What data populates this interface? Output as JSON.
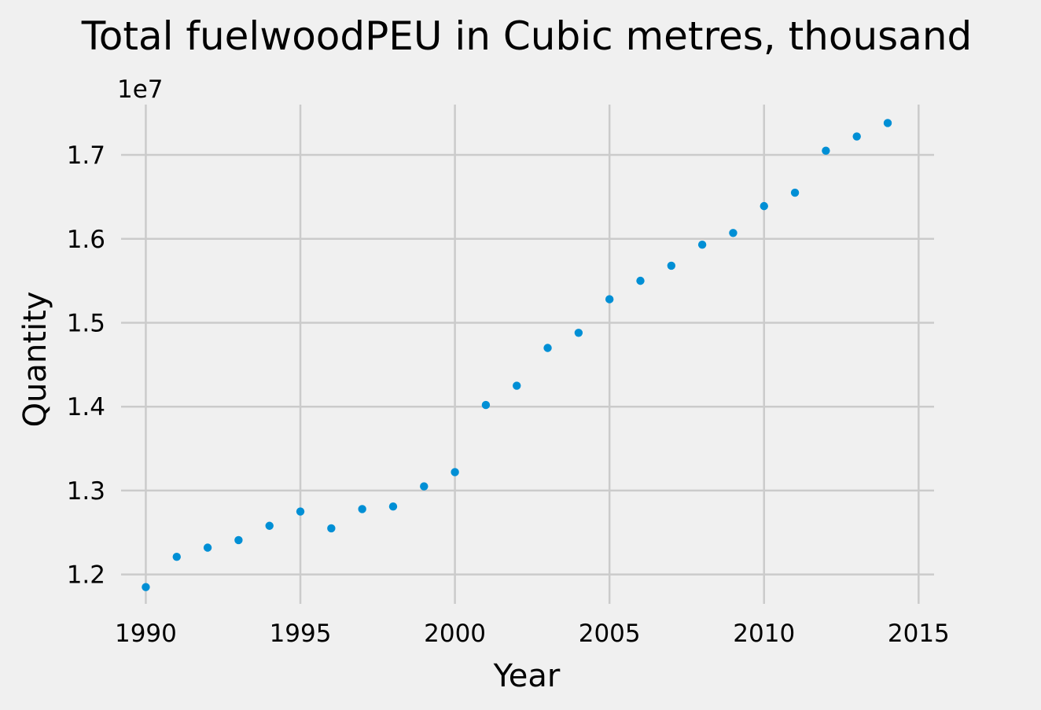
{
  "chart_data": {
    "type": "scatter",
    "title": "Total fuelwoodPEU in Cubic metres, thousand",
    "xlabel": "Year",
    "ylabel": "Quantity",
    "y_offset_label": "1e7",
    "y_scale_factor": 10000000,
    "xlim": [
      1989.2,
      2015.5
    ],
    "ylim": [
      11650000,
      17600000
    ],
    "x_ticks": [
      1990,
      1995,
      2000,
      2005,
      2010,
      2015
    ],
    "y_ticks": [
      12000000,
      13000000,
      14000000,
      15000000,
      16000000,
      17000000
    ],
    "x_tick_labels": [
      "1990",
      "1995",
      "2000",
      "2005",
      "2010",
      "2015"
    ],
    "y_tick_labels": [
      "1.2",
      "1.3",
      "1.4",
      "1.5",
      "1.6",
      "1.7"
    ],
    "grid": true,
    "color": "#008fd5",
    "series": [
      {
        "x": [
          1990,
          1991,
          1992,
          1993,
          1994,
          1995,
          1996,
          1997,
          1998,
          1999,
          2000,
          2001,
          2002,
          2003,
          2004,
          2005,
          2006,
          2007,
          2008,
          2009,
          2010,
          2011,
          2012,
          2013,
          2014
        ],
        "y": [
          11850000,
          12210000,
          12320000,
          12410000,
          12580000,
          12750000,
          12550000,
          12780000,
          12810000,
          13050000,
          13220000,
          14020000,
          14250000,
          14700000,
          14880000,
          15280000,
          15500000,
          15680000,
          15930000,
          16070000,
          16390000,
          16550000,
          17050000,
          17220000,
          17380000
        ]
      }
    ]
  }
}
